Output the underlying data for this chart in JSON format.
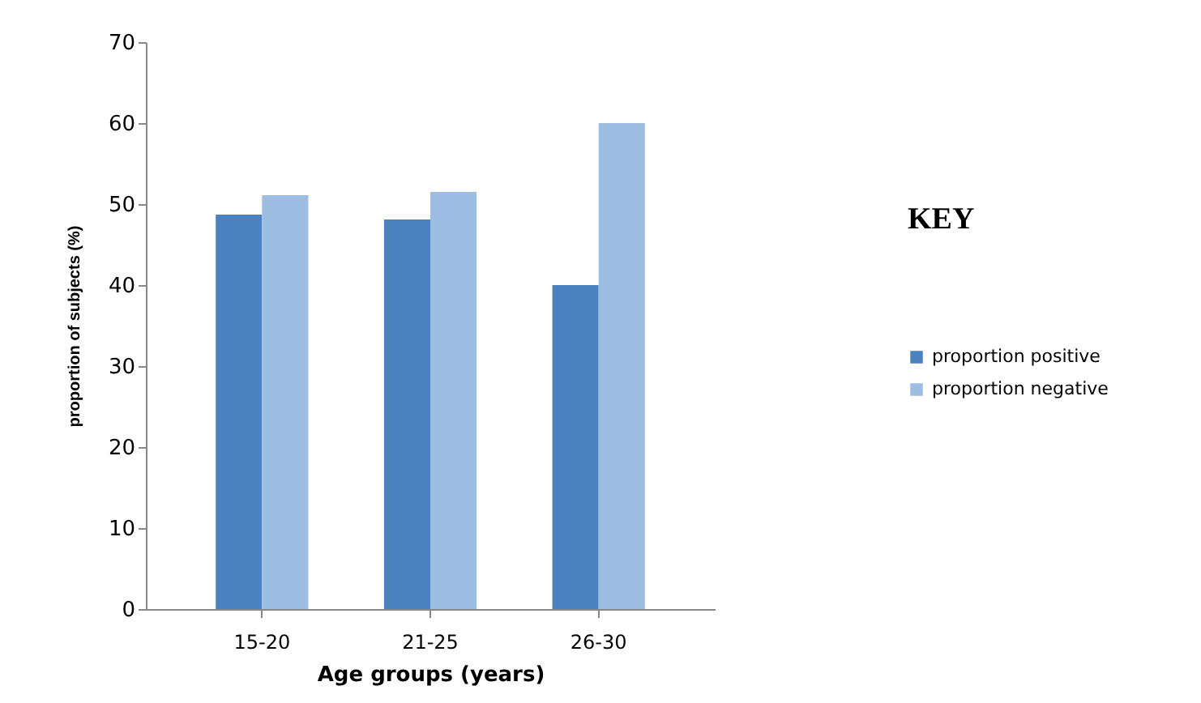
{
  "chart_data": {
    "type": "bar",
    "xlabel": "Age groups (years)",
    "ylabel": "proportion of subjects (%)",
    "legend_title": "KEY",
    "categories": [
      "15-20",
      "21-25",
      "26-30"
    ],
    "series": [
      {
        "name": "proportion positive",
        "color": "#4a82bf",
        "values": [
          48.7,
          48.1,
          40
        ]
      },
      {
        "name": "proportion negative",
        "color": "#9dbde3",
        "values": [
          51.1,
          51.5,
          60
        ]
      }
    ],
    "ylim": [
      0,
      70
    ],
    "yticks": [
      0,
      10,
      20,
      30,
      40,
      50,
      60,
      70
    ],
    "grid": false,
    "legend": "right"
  }
}
